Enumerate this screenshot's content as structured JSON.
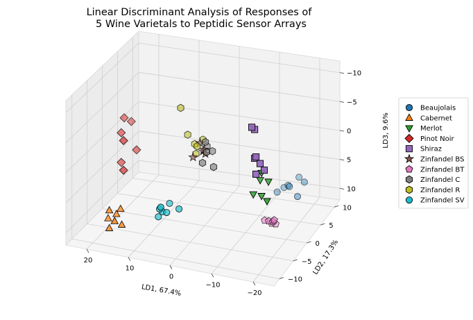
{
  "chart_data": {
    "type": "scatter",
    "title_lines": [
      "Linear Discriminant Analysis of Responses of",
      "5 Wine Varietals to Peptidic Sensor Arrays"
    ],
    "xlabel": "LD1, 67.4%",
    "ylabel": "LD2, 17.3%",
    "zlabel": "LD3, 9.6%",
    "x_ticks": [
      "20",
      "10",
      "0",
      "−10",
      "−20"
    ],
    "y_ticks": [
      "−10",
      "−5",
      "0",
      "5",
      "10"
    ],
    "z_ticks": [
      "−10",
      "−5",
      "0",
      "5",
      "10"
    ],
    "xlim": [
      -25,
      25
    ],
    "ylim": [
      -12,
      12
    ],
    "zlim": [
      -12,
      12
    ],
    "z_inverted": true,
    "grid": true,
    "legend_position": "right",
    "series": [
      {
        "name": "Beaujolais",
        "marker": "circle",
        "color": "#1f77b4",
        "points": [
          [
            -17,
            5,
            6
          ],
          [
            -16,
            5,
            6.5
          ],
          [
            -18,
            4,
            5.5
          ],
          [
            -19,
            6,
            5
          ],
          [
            -15,
            4,
            6.8
          ],
          [
            -20,
            4,
            7
          ],
          [
            -21,
            5,
            5
          ]
        ]
      },
      {
        "name": "Cabernet",
        "marker": "triangle-up",
        "color": "#ff7f0e",
        "points": [
          [
            16,
            -10,
            6
          ],
          [
            15,
            -9,
            7
          ],
          [
            17,
            -9,
            8
          ],
          [
            14,
            -9,
            6
          ],
          [
            13,
            -10,
            8
          ],
          [
            14,
            -11,
            7
          ],
          [
            16,
            -10,
            9
          ]
        ]
      },
      {
        "name": "Merlot",
        "marker": "triangle-down",
        "color": "#2ca02c",
        "points": [
          [
            -18,
            -6,
            -3
          ],
          [
            -17,
            -5,
            -1
          ],
          [
            -18,
            -6,
            1
          ],
          [
            -16,
            -6,
            1
          ],
          [
            -20,
            -7,
            1
          ],
          [
            -19,
            -5,
            -1
          ]
        ]
      },
      {
        "name": "Pinot Noir",
        "marker": "diamond",
        "color": "#d62728",
        "points": [
          [
            15,
            -4,
            -6
          ],
          [
            16,
            -5,
            -7
          ],
          [
            16,
            -6,
            -5
          ],
          [
            14,
            -8,
            -5
          ],
          [
            13,
            -5,
            -2
          ],
          [
            16,
            -6,
            0
          ],
          [
            14,
            -8,
            0
          ]
        ]
      },
      {
        "name": "Shiraz",
        "marker": "square",
        "color": "#9467bd",
        "points": [
          [
            -17,
            -7,
            -11
          ],
          [
            -17,
            -8,
            -12
          ],
          [
            -18,
            -8,
            -7
          ],
          [
            -17,
            -7,
            -6
          ],
          [
            -19,
            -8,
            -6
          ],
          [
            -18,
            -8,
            -4
          ],
          [
            -20,
            -8,
            -5
          ]
        ]
      },
      {
        "name": "Zinfandel BS",
        "marker": "star",
        "color": "#8c564b",
        "points": [
          [
            -2,
            -3,
            -3
          ],
          [
            -1,
            -2,
            -2
          ],
          [
            -3,
            -4,
            -3
          ],
          [
            0,
            -4,
            -2
          ],
          [
            -1,
            -3,
            -4
          ]
        ]
      },
      {
        "name": "Zinfandel BT",
        "marker": "pentagon",
        "color": "#e377c2",
        "points": [
          [
            -14,
            1,
            10
          ],
          [
            -15,
            1,
            10
          ],
          [
            -15,
            2,
            11
          ],
          [
            -16,
            1,
            10
          ],
          [
            -16,
            2,
            11
          ],
          [
            -17,
            0,
            9
          ]
        ]
      },
      {
        "name": "Zinfandel C",
        "marker": "hexagon",
        "color": "#7f7f7f",
        "points": [
          [
            -3,
            -4,
            -5
          ],
          [
            -4,
            -3,
            -3
          ],
          [
            -2,
            -2,
            -3
          ],
          [
            -4,
            -5,
            -4
          ],
          [
            -3,
            -5,
            -2
          ],
          [
            -5,
            -4,
            -1
          ]
        ]
      },
      {
        "name": "Zinfandel R",
        "marker": "hexagon",
        "color": "#bcbd22",
        "points": [
          [
            3,
            -4,
            -10
          ],
          [
            -1,
            -2,
            -4
          ],
          [
            0,
            -3,
            -2
          ],
          [
            1,
            -2,
            -3
          ],
          [
            -1,
            -4,
            -4
          ],
          [
            2,
            -3,
            -5
          ]
        ]
      },
      {
        "name": "Zinfandel SV",
        "marker": "circle",
        "color": "#17becf",
        "points": [
          [
            7,
            -6,
            8
          ],
          [
            6,
            -6,
            7
          ],
          [
            5,
            -8,
            5
          ],
          [
            6,
            -7,
            6
          ],
          [
            5,
            -5,
            6
          ],
          [
            2,
            -6,
            6
          ],
          [
            5,
            -6,
            7
          ]
        ]
      }
    ]
  }
}
